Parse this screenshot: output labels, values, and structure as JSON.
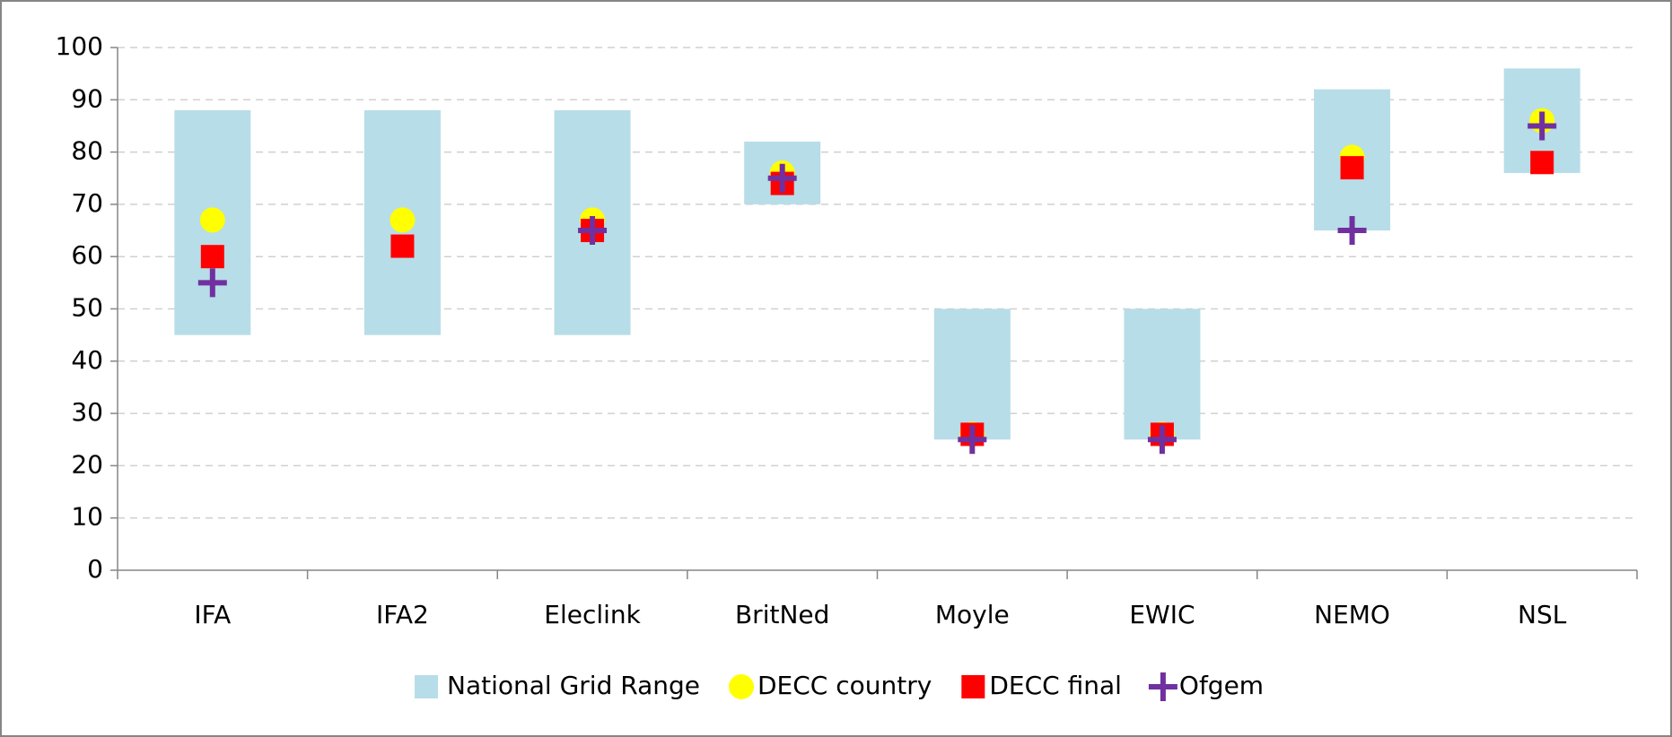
{
  "chart_data": {
    "type": "range-markers",
    "categories": [
      "IFA",
      "IFA2",
      "Eleclink",
      "BritNed",
      "Moyle",
      "EWIC",
      "NEMO",
      "NSL"
    ],
    "range": {
      "name": "National Grid Range",
      "color": "#b7dde8",
      "low": [
        45,
        45,
        45,
        70,
        25,
        25,
        65,
        76
      ],
      "high": [
        88,
        88,
        88,
        82,
        50,
        50,
        92,
        96
      ]
    },
    "series": [
      {
        "name": "DECC country",
        "color": "#ffff00",
        "marker": "circle",
        "values": [
          67,
          67,
          67,
          76,
          26,
          26,
          79,
          86
        ]
      },
      {
        "name": "DECC final",
        "color": "#ff0000",
        "marker": "square",
        "values": [
          60,
          62,
          65,
          74,
          26,
          26,
          77,
          78
        ]
      },
      {
        "name": "Ofgem",
        "color": "#7030a0",
        "marker": "plus",
        "values": [
          55,
          null,
          65,
          75,
          25,
          25,
          65,
          85
        ]
      }
    ],
    "ylim": [
      0,
      100
    ],
    "yticks": [
      0,
      10,
      20,
      30,
      40,
      50,
      60,
      70,
      80,
      90,
      100
    ],
    "grid": true,
    "legend": "bottom"
  }
}
